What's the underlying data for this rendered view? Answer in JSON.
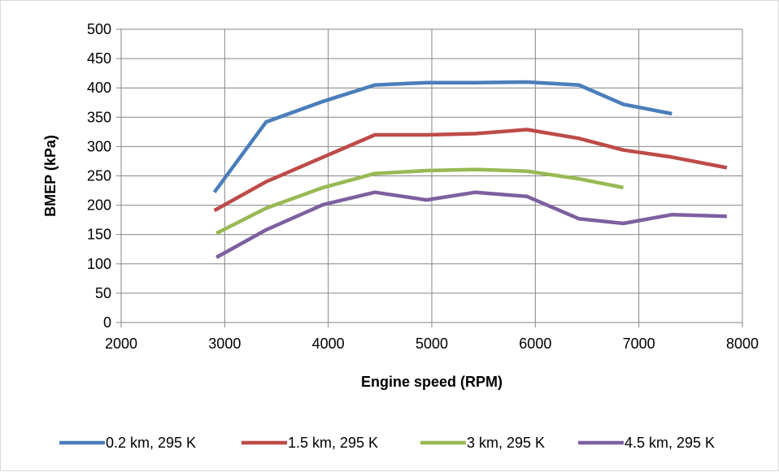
{
  "chart_data": {
    "type": "line",
    "title": "",
    "xlabel": "Engine speed (RPM)",
    "ylabel": "BMEP (kPa)",
    "xlim": [
      2000,
      8000
    ],
    "ylim": [
      0,
      500
    ],
    "x_ticks": [
      2000,
      3000,
      4000,
      5000,
      6000,
      7000,
      8000
    ],
    "y_ticks": [
      0,
      50,
      100,
      150,
      200,
      250,
      300,
      350,
      400,
      450,
      500
    ],
    "grid": true,
    "legend_position": "bottom",
    "series": [
      {
        "name": "0.2 km, 295 K",
        "color": "#4a7ebb",
        "points": [
          [
            2900,
            222
          ],
          [
            3400,
            342
          ],
          [
            3950,
            377
          ],
          [
            4450,
            405
          ],
          [
            4950,
            409
          ],
          [
            5420,
            409
          ],
          [
            5920,
            410
          ],
          [
            6420,
            405
          ],
          [
            6850,
            372
          ],
          [
            7320,
            356
          ]
        ]
      },
      {
        "name": "1.5 km, 295 K",
        "color": "#be4b48",
        "points": [
          [
            2900,
            191
          ],
          [
            3400,
            240
          ],
          [
            3950,
            282
          ],
          [
            4450,
            320
          ],
          [
            4950,
            320
          ],
          [
            5420,
            322
          ],
          [
            5920,
            329
          ],
          [
            6420,
            314
          ],
          [
            6850,
            294
          ],
          [
            7320,
            282
          ],
          [
            7850,
            264
          ]
        ]
      },
      {
        "name": "3 km, 295 K",
        "color": "#98b954",
        "points": [
          [
            2920,
            152
          ],
          [
            3400,
            195
          ],
          [
            3950,
            230
          ],
          [
            4450,
            254
          ],
          [
            4950,
            259
          ],
          [
            5420,
            261
          ],
          [
            5920,
            258
          ],
          [
            6420,
            245
          ],
          [
            6850,
            230
          ]
        ]
      },
      {
        "name": "4.5 km, 295 K",
        "color": "#7d60a0",
        "points": [
          [
            2920,
            111
          ],
          [
            3400,
            158
          ],
          [
            3950,
            201
          ],
          [
            4450,
            222
          ],
          [
            4950,
            209
          ],
          [
            5420,
            222
          ],
          [
            5920,
            215
          ],
          [
            6420,
            177
          ],
          [
            6850,
            169
          ],
          [
            7320,
            184
          ],
          [
            7850,
            181
          ]
        ]
      }
    ]
  }
}
